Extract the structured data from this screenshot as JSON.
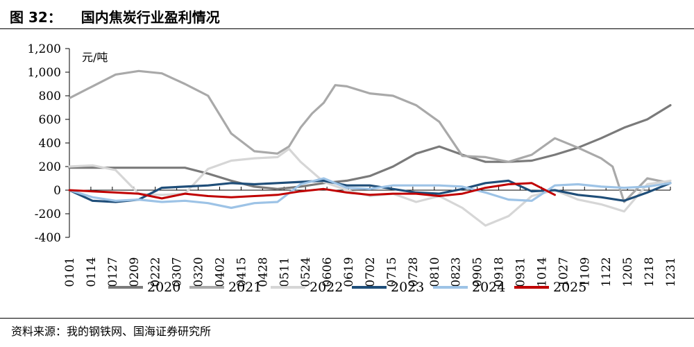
{
  "header": {
    "figure_label": "图 32：",
    "title": "国内焦炭行业盈利情况"
  },
  "footer": {
    "source": "资料来源：我的钢铁网、国海证券研究所"
  },
  "colors": {
    "2020": "#7a7a7a",
    "2021": "#a9a9a9",
    "2022": "#d6d6d6",
    "2023": "#1f4e79",
    "2024": "#9dc3e6",
    "2025": "#c00000"
  },
  "chart_data": {
    "type": "line",
    "unit": "元/吨",
    "ylim": [
      -400,
      1200
    ],
    "yticks": [
      -400,
      -200,
      0,
      200,
      400,
      600,
      800,
      1000,
      1200
    ],
    "ytick_labels": [
      "-400",
      "-200",
      "0",
      "200",
      "400",
      "600",
      "800",
      "1,000",
      "1,200"
    ],
    "xlim": [
      0,
      52
    ],
    "xtick_labels": [
      "0101",
      "0114",
      "0127",
      "0209",
      "0222",
      "0307",
      "0320",
      "0402",
      "0415",
      "0428",
      "0511",
      "0524",
      "0606",
      "0619",
      "0702",
      "0715",
      "0728",
      "0810",
      "0823",
      "0905",
      "0918",
      "0931",
      "1014",
      "1027",
      "1109",
      "1122",
      "1205",
      "1218",
      "1231"
    ],
    "legend_position": "bottom",
    "grid": false,
    "series": [
      {
        "name": "2020",
        "x": [
          0,
          4,
          8,
          10,
          12,
          14,
          16,
          18,
          20,
          22,
          24,
          26,
          28,
          30,
          32,
          34,
          36,
          38,
          40,
          42,
          44,
          46,
          48,
          50,
          52
        ],
        "values": [
          190,
          190,
          190,
          190,
          140,
          80,
          30,
          10,
          30,
          60,
          80,
          120,
          200,
          310,
          370,
          300,
          240,
          240,
          250,
          300,
          360,
          440,
          530,
          600,
          720
        ]
      },
      {
        "name": "2021",
        "x": [
          0,
          2,
          4,
          6,
          8,
          10,
          12,
          14,
          16,
          18,
          19,
          20,
          21,
          22,
          23,
          24,
          26,
          28,
          30,
          32,
          34,
          36,
          38,
          40,
          42,
          44,
          46,
          47,
          48,
          50,
          52
        ],
        "values": [
          780,
          880,
          980,
          1010,
          990,
          900,
          800,
          480,
          330,
          310,
          370,
          530,
          650,
          740,
          890,
          880,
          820,
          800,
          720,
          580,
          290,
          280,
          240,
          300,
          440,
          360,
          270,
          200,
          -100,
          100,
          60
        ]
      },
      {
        "name": "2022",
        "x": [
          0,
          2,
          4,
          6,
          8,
          10,
          12,
          14,
          16,
          18,
          19,
          20,
          22,
          24,
          26,
          28,
          30,
          32,
          34,
          36,
          38,
          40,
          42,
          44,
          46,
          48,
          50,
          52
        ],
        "values": [
          200,
          210,
          170,
          -30,
          -40,
          -30,
          180,
          250,
          270,
          280,
          350,
          240,
          70,
          0,
          -50,
          -30,
          -100,
          -50,
          -150,
          -300,
          -220,
          -50,
          0,
          -80,
          -120,
          -180,
          50,
          80
        ]
      },
      {
        "name": "2023",
        "x": [
          0,
          2,
          4,
          6,
          8,
          10,
          12,
          14,
          16,
          18,
          20,
          22,
          24,
          26,
          28,
          30,
          32,
          34,
          36,
          38,
          40,
          42,
          44,
          46,
          48,
          50,
          52
        ],
        "values": [
          0,
          -90,
          -100,
          -80,
          20,
          30,
          40,
          60,
          50,
          60,
          70,
          80,
          40,
          40,
          10,
          -20,
          -30,
          10,
          60,
          80,
          -10,
          0,
          -40,
          -60,
          -90,
          -20,
          60
        ]
      },
      {
        "name": "2024",
        "x": [
          0,
          2,
          4,
          6,
          8,
          10,
          12,
          14,
          16,
          18,
          20,
          22,
          24,
          26,
          28,
          30,
          32,
          34,
          36,
          38,
          40,
          42,
          44,
          46,
          48,
          50,
          52
        ],
        "values": [
          0,
          -60,
          -90,
          -80,
          -100,
          -90,
          -110,
          -150,
          -110,
          -100,
          50,
          100,
          20,
          10,
          40,
          40,
          40,
          30,
          -20,
          -80,
          -90,
          40,
          50,
          30,
          20,
          30,
          60
        ]
      },
      {
        "name": "2025",
        "x": [
          0,
          2,
          4,
          6,
          8,
          10,
          12,
          14,
          16,
          18,
          20,
          22,
          24,
          26,
          28,
          30,
          32,
          34,
          36,
          38,
          40,
          42
        ],
        "values": [
          0,
          -10,
          -20,
          -30,
          -70,
          -30,
          -50,
          -60,
          -50,
          -40,
          -10,
          10,
          -20,
          -40,
          -30,
          -30,
          -50,
          -30,
          20,
          50,
          60,
          -40
        ]
      }
    ]
  }
}
